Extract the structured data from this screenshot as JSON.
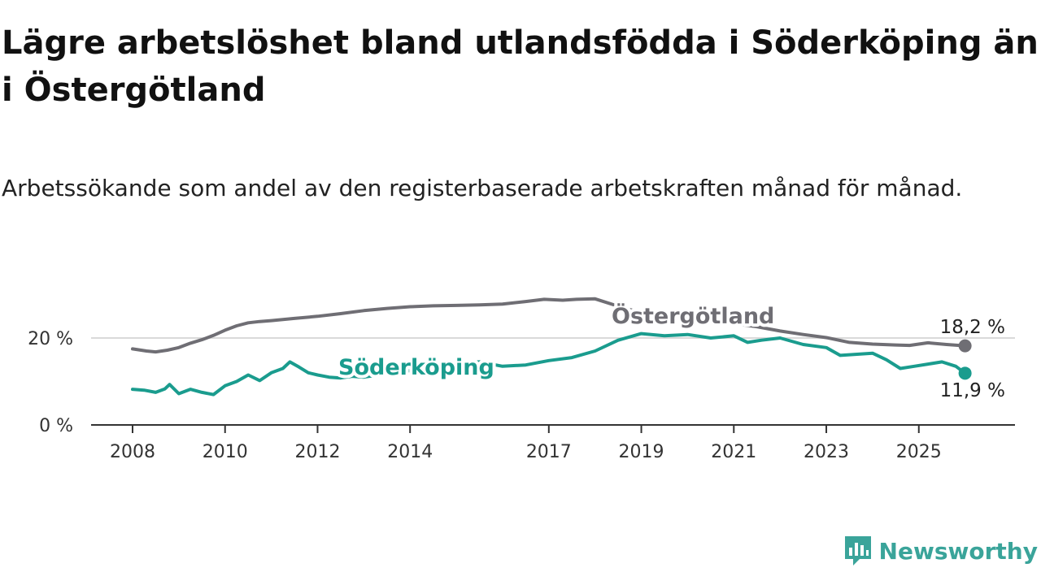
{
  "header": {
    "title": "Lägre arbetslöshet bland utlandsfödda i Söderköping än i Östergötland",
    "subtitle": "Arbetssökande som andel av den registerbaserade arbetskraften månad för månad."
  },
  "brand": {
    "name": "Newsworthy",
    "icon": "newsworthy-chart-icon",
    "color": "#3aa49a"
  },
  "chart_data": {
    "type": "line",
    "x_axis": {
      "ticks": [
        "2008",
        "2010",
        "2012",
        "2014",
        "2017",
        "2019",
        "2021",
        "2023",
        "2025"
      ],
      "range": [
        2008,
        2026.2
      ]
    },
    "y_axis": {
      "ticks": [
        "0 %",
        "20 %"
      ],
      "tick_values": [
        0,
        20
      ],
      "range": [
        0,
        30
      ]
    },
    "grid": "horizontal at 20",
    "series": [
      {
        "name": "Östergötland",
        "color": "#6f6e74",
        "end_label": "18,2 %",
        "end_value": 18.2,
        "points": [
          [
            2008.0,
            17.5
          ],
          [
            2008.3,
            17.0
          ],
          [
            2008.5,
            16.8
          ],
          [
            2008.75,
            17.2
          ],
          [
            2009.0,
            17.8
          ],
          [
            2009.25,
            18.8
          ],
          [
            2009.5,
            19.6
          ],
          [
            2009.75,
            20.6
          ],
          [
            2010.0,
            21.8
          ],
          [
            2010.25,
            22.8
          ],
          [
            2010.5,
            23.5
          ],
          [
            2010.75,
            23.8
          ],
          [
            2011.0,
            24.0
          ],
          [
            2011.5,
            24.5
          ],
          [
            2012.0,
            25.0
          ],
          [
            2012.5,
            25.6
          ],
          [
            2013.0,
            26.3
          ],
          [
            2013.5,
            26.8
          ],
          [
            2014.0,
            27.2
          ],
          [
            2014.5,
            27.4
          ],
          [
            2015.0,
            27.5
          ],
          [
            2015.5,
            27.6
          ],
          [
            2016.0,
            27.8
          ],
          [
            2016.5,
            28.4
          ],
          [
            2016.9,
            28.9
          ],
          [
            2017.3,
            28.7
          ],
          [
            2017.6,
            28.9
          ],
          [
            2018.0,
            29.0
          ],
          [
            2018.5,
            27.3
          ],
          [
            2019.0,
            25.8
          ],
          [
            2019.5,
            25.0
          ],
          [
            2020.0,
            24.4
          ],
          [
            2020.5,
            23.8
          ],
          [
            2021.0,
            23.3
          ],
          [
            2021.5,
            22.6
          ],
          [
            2022.0,
            21.6
          ],
          [
            2022.5,
            20.8
          ],
          [
            2023.0,
            20.1
          ],
          [
            2023.5,
            19.0
          ],
          [
            2024.0,
            18.6
          ],
          [
            2024.5,
            18.4
          ],
          [
            2024.8,
            18.3
          ],
          [
            2025.2,
            18.9
          ],
          [
            2025.6,
            18.5
          ],
          [
            2026.0,
            18.2
          ]
        ]
      },
      {
        "name": "Söderköping",
        "color": "#1a9c8e",
        "end_label": "11,9 %",
        "end_value": 11.9,
        "points": [
          [
            2008.0,
            8.2
          ],
          [
            2008.25,
            8.0
          ],
          [
            2008.5,
            7.5
          ],
          [
            2008.7,
            8.3
          ],
          [
            2008.8,
            9.3
          ],
          [
            2009.0,
            7.2
          ],
          [
            2009.25,
            8.2
          ],
          [
            2009.5,
            7.5
          ],
          [
            2009.75,
            7.0
          ],
          [
            2010.0,
            9.0
          ],
          [
            2010.25,
            10.0
          ],
          [
            2010.5,
            11.5
          ],
          [
            2010.75,
            10.2
          ],
          [
            2011.0,
            12.0
          ],
          [
            2011.25,
            13.0
          ],
          [
            2011.4,
            14.5
          ],
          [
            2011.6,
            13.3
          ],
          [
            2011.8,
            12.0
          ],
          [
            2012.0,
            11.5
          ],
          [
            2012.25,
            11.0
          ],
          [
            2012.5,
            10.8
          ],
          [
            2012.75,
            11.2
          ],
          [
            2013.0,
            11.0
          ],
          [
            2013.5,
            11.8
          ],
          [
            2014.0,
            12.5
          ],
          [
            2014.5,
            13.5
          ],
          [
            2015.0,
            14.2
          ],
          [
            2015.5,
            14.5
          ],
          [
            2016.0,
            13.5
          ],
          [
            2016.5,
            13.8
          ],
          [
            2017.0,
            14.8
          ],
          [
            2017.5,
            15.5
          ],
          [
            2018.0,
            17.0
          ],
          [
            2018.5,
            19.5
          ],
          [
            2019.0,
            21.0
          ],
          [
            2019.5,
            20.5
          ],
          [
            2020.0,
            20.8
          ],
          [
            2020.5,
            20.0
          ],
          [
            2021.0,
            20.5
          ],
          [
            2021.3,
            19.0
          ],
          [
            2021.6,
            19.5
          ],
          [
            2022.0,
            20.0
          ],
          [
            2022.5,
            18.5
          ],
          [
            2023.0,
            17.8
          ],
          [
            2023.3,
            16.0
          ],
          [
            2023.6,
            16.2
          ],
          [
            2024.0,
            16.5
          ],
          [
            2024.3,
            15.0
          ],
          [
            2024.6,
            13.0
          ],
          [
            2024.9,
            13.5
          ],
          [
            2025.2,
            14.0
          ],
          [
            2025.5,
            14.5
          ],
          [
            2025.8,
            13.5
          ],
          [
            2026.0,
            11.9
          ]
        ]
      }
    ]
  }
}
